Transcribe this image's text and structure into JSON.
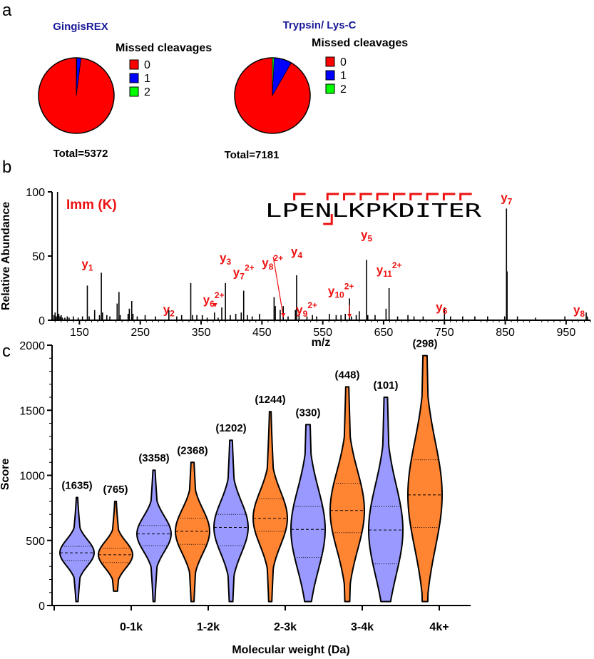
{
  "panel_labels": {
    "a": "a",
    "b": "b",
    "c": "c"
  },
  "chart_data": [
    {
      "type": "pie",
      "panel": "a",
      "title": "GingisREX",
      "legend_title": "Missed cleavages",
      "categories": [
        "0",
        "1",
        "2"
      ],
      "values": [
        98.0,
        1.8,
        0.2
      ],
      "colors": [
        "#ff0000",
        "#0000ff",
        "#00ff00"
      ],
      "total_label": "Total=5372"
    },
    {
      "type": "pie",
      "panel": "a",
      "title": "Trypsin/ Lys-C",
      "legend_title": "Missed cleavages",
      "categories": [
        "0",
        "1",
        "2"
      ],
      "values": [
        91.7,
        7.6,
        0.7
      ],
      "colors": [
        "#ff0000",
        "#0000ff",
        "#00ff00"
      ],
      "total_label": "Total=7181"
    },
    {
      "type": "spectrum",
      "panel": "b",
      "ylabel": "Relative Abundance",
      "xlabel": "m/z",
      "xlim": [
        105,
        990
      ],
      "ylim": [
        0,
        100
      ],
      "xticks": [
        150,
        250,
        350,
        450,
        550,
        650,
        750,
        850,
        950
      ],
      "yticks": [
        0,
        50,
        100
      ],
      "peptide": "LPENLKPKDITER",
      "immonium_label": "Imm (K)",
      "peaks": [
        [
          108,
          4
        ],
        [
          110,
          6
        ],
        [
          112,
          3
        ],
        [
          114,
          100
        ],
        [
          116,
          5
        ],
        [
          118,
          3
        ],
        [
          120,
          4
        ],
        [
          122,
          2
        ],
        [
          126,
          2
        ],
        [
          130,
          3
        ],
        [
          133,
          2
        ],
        [
          140,
          3
        ],
        [
          148,
          2
        ],
        [
          155,
          3
        ],
        [
          163,
          27
        ],
        [
          166,
          3
        ],
        [
          175,
          8
        ],
        [
          183,
          4
        ],
        [
          186,
          37
        ],
        [
          188,
          6
        ],
        [
          195,
          4
        ],
        [
          200,
          3
        ],
        [
          212,
          13
        ],
        [
          215,
          22
        ],
        [
          217,
          4
        ],
        [
          230,
          5
        ],
        [
          232,
          9
        ],
        [
          236,
          15
        ],
        [
          238,
          5
        ],
        [
          245,
          3
        ],
        [
          258,
          4
        ],
        [
          275,
          3
        ],
        [
          297,
          8
        ],
        [
          310,
          3
        ],
        [
          318,
          4
        ],
        [
          333,
          29
        ],
        [
          336,
          4
        ],
        [
          343,
          4
        ],
        [
          352,
          4
        ],
        [
          360,
          2
        ],
        [
          372,
          6
        ],
        [
          378,
          2
        ],
        [
          384,
          10
        ],
        [
          390,
          29
        ],
        [
          398,
          4
        ],
        [
          407,
          5
        ],
        [
          416,
          6
        ],
        [
          420,
          23
        ],
        [
          426,
          4
        ],
        [
          434,
          3
        ],
        [
          446,
          5
        ],
        [
          470,
          18
        ],
        [
          472,
          11
        ],
        [
          480,
          8
        ],
        [
          485,
          11
        ],
        [
          493,
          3
        ],
        [
          505,
          8
        ],
        [
          507,
          35
        ],
        [
          511,
          5
        ],
        [
          524,
          3
        ],
        [
          533,
          4
        ],
        [
          540,
          3
        ],
        [
          561,
          5
        ],
        [
          572,
          4
        ],
        [
          580,
          4
        ],
        [
          587,
          5
        ],
        [
          594,
          17
        ],
        [
          597,
          3
        ],
        [
          605,
          4
        ],
        [
          610,
          7
        ],
        [
          622,
          47
        ],
        [
          624,
          4
        ],
        [
          636,
          4
        ],
        [
          654,
          9
        ],
        [
          659,
          25
        ],
        [
          673,
          3
        ],
        [
          690,
          4
        ],
        [
          700,
          3
        ],
        [
          715,
          3
        ],
        [
          750,
          10
        ],
        [
          760,
          3
        ],
        [
          780,
          3
        ],
        [
          800,
          3
        ],
        [
          821,
          3
        ],
        [
          849,
          3
        ],
        [
          852,
          87
        ],
        [
          853,
          38
        ],
        [
          870,
          3
        ],
        [
          900,
          2
        ],
        [
          948,
          3
        ],
        [
          983,
          6
        ],
        [
          985,
          3
        ]
      ],
      "ion_labels": [
        {
          "ion": "y",
          "sub": "1",
          "sup": "",
          "mz": 163
        },
        {
          "ion": "y",
          "sub": "2",
          "sup": "",
          "mz": 297
        },
        {
          "ion": "y",
          "sub": "6",
          "sup": "2+",
          "mz": 373
        },
        {
          "ion": "y",
          "sub": "3",
          "sup": "",
          "mz": 390
        },
        {
          "ion": "y",
          "sub": "7",
          "sup": "2+",
          "mz": 420
        },
        {
          "ion": "y",
          "sub": "8",
          "sup": "2+",
          "mz": 485
        },
        {
          "ion": "y",
          "sub": "4",
          "sup": "",
          "mz": 507
        },
        {
          "ion": "y",
          "sub": "9",
          "sup": "2+",
          "mz": 540
        },
        {
          "ion": "y",
          "sub": "10",
          "sup": "2+",
          "mz": 594
        },
        {
          "ion": "y",
          "sub": "5",
          "sup": "",
          "mz": 622
        },
        {
          "ion": "y",
          "sub": "11",
          "sup": "2+",
          "mz": 659
        },
        {
          "ion": "y",
          "sub": "6",
          "sup": "",
          "mz": 750
        },
        {
          "ion": "y",
          "sub": "7",
          "sup": "",
          "mz": 852
        },
        {
          "ion": "y",
          "sub": "8",
          "sup": "",
          "mz": 983
        }
      ]
    },
    {
      "type": "violin",
      "panel": "c",
      "ylabel": "Score",
      "xlabel": "Molecular  weight (Da)",
      "ylim": [
        0,
        2000
      ],
      "yticks": [
        0,
        500,
        1000,
        1500,
        2000
      ],
      "group_labels": [
        "0-1k",
        "1-2k",
        "2-3k",
        "3-4k",
        "4k+"
      ],
      "series_colors": {
        "GingisREX": "#9999ff",
        "Trypsin/ Lys-C": "#ff8533"
      },
      "violins": [
        {
          "group": "0-1k",
          "series": "GingisREX",
          "count": "(1635)",
          "min": 30,
          "max": 830,
          "q1": 345,
          "median": 405,
          "q3": 455
        },
        {
          "group": "0-1k",
          "series": "Trypsin/ Lys-C",
          "count": "(765)",
          "min": 110,
          "max": 800,
          "q1": 330,
          "median": 390,
          "q3": 440
        },
        {
          "group": "1-2k",
          "series": "GingisREX",
          "count": "(3358)",
          "min": 30,
          "max": 1040,
          "q1": 460,
          "median": 550,
          "q3": 615
        },
        {
          "group": "1-2k",
          "series": "Trypsin/ Lys-C",
          "count": "(2368)",
          "min": 30,
          "max": 1100,
          "q1": 470,
          "median": 570,
          "q3": 670
        },
        {
          "group": "2-3k",
          "series": "GingisREX",
          "count": "(1202)",
          "min": 30,
          "max": 1270,
          "q1": 460,
          "median": 600,
          "q3": 700
        },
        {
          "group": "2-3k",
          "series": "Trypsin/ Lys-C",
          "count": "(1244)",
          "min": 30,
          "max": 1490,
          "q1": 570,
          "median": 670,
          "q3": 820
        },
        {
          "group": "3-4k",
          "series": "GingisREX",
          "count": "(330)",
          "min": 30,
          "max": 1390,
          "q1": 370,
          "median": 585,
          "q3": 760
        },
        {
          "group": "3-4k",
          "series": "Trypsin/ Lys-C",
          "count": "(448)",
          "min": 30,
          "max": 1680,
          "q1": 560,
          "median": 730,
          "q3": 940
        },
        {
          "group": "4k+",
          "series": "GingisREX",
          "count": "(101)",
          "min": 30,
          "max": 1600,
          "q1": 320,
          "median": 580,
          "q3": 760
        },
        {
          "group": "4k+",
          "series": "Trypsin/ Lys-C",
          "count": "(298)",
          "min": 30,
          "max": 1920,
          "q1": 600,
          "median": 850,
          "q3": 1120
        }
      ]
    }
  ]
}
